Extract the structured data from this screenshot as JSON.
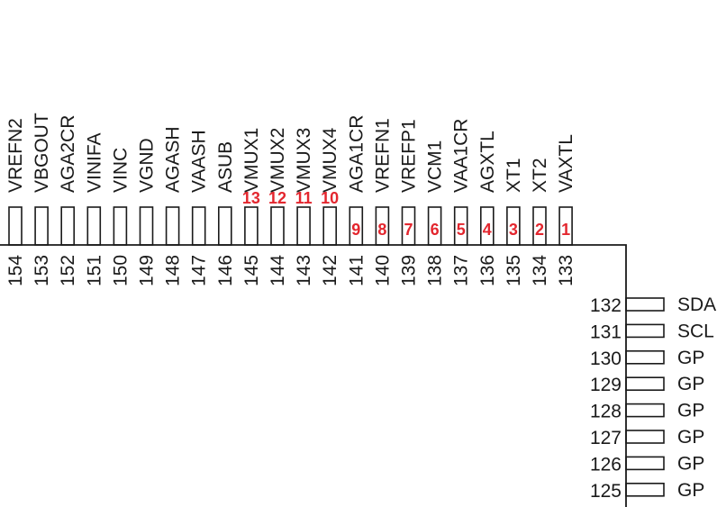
{
  "top_pins": [
    {
      "num": "154",
      "label": "VREFN2",
      "mark": ""
    },
    {
      "num": "153",
      "label": "VBGOUT",
      "mark": ""
    },
    {
      "num": "152",
      "label": "AGA2CR",
      "mark": ""
    },
    {
      "num": "151",
      "label": "VINIFA",
      "mark": ""
    },
    {
      "num": "150",
      "label": "VINC",
      "mark": ""
    },
    {
      "num": "149",
      "label": "VGND",
      "mark": ""
    },
    {
      "num": "148",
      "label": "AGASH",
      "mark": ""
    },
    {
      "num": "147",
      "label": "VAASH",
      "mark": ""
    },
    {
      "num": "146",
      "label": "ASUB",
      "mark": ""
    },
    {
      "num": "145",
      "label": "VMUX1",
      "mark": "13"
    },
    {
      "num": "144",
      "label": "VMUX2",
      "mark": "12"
    },
    {
      "num": "143",
      "label": "VMUX3",
      "mark": "11"
    },
    {
      "num": "142",
      "label": "VMUX4",
      "mark": "10"
    },
    {
      "num": "141",
      "label": "AGA1CR",
      "mark": "9"
    },
    {
      "num": "140",
      "label": "VREFN1",
      "mark": "8"
    },
    {
      "num": "139",
      "label": "VREFP1",
      "mark": "7"
    },
    {
      "num": "138",
      "label": "VCM1",
      "mark": "6"
    },
    {
      "num": "137",
      "label": "VAA1CR",
      "mark": "5"
    },
    {
      "num": "136",
      "label": "AGXTL",
      "mark": "4"
    },
    {
      "num": "135",
      "label": "XT1",
      "mark": "3"
    },
    {
      "num": "134",
      "label": "XT2",
      "mark": "2"
    },
    {
      "num": "133",
      "label": "VAXTL",
      "mark": "1"
    }
  ],
  "right_pins": [
    {
      "num": "132",
      "label": "SDA"
    },
    {
      "num": "131",
      "label": "SCL"
    },
    {
      "num": "130",
      "label": "GP"
    },
    {
      "num": "129",
      "label": "GP"
    },
    {
      "num": "128",
      "label": "GP"
    },
    {
      "num": "127",
      "label": "GP"
    },
    {
      "num": "126",
      "label": "GP"
    },
    {
      "num": "125",
      "label": "GP"
    }
  ],
  "colors": {
    "ink": "#1a1a1a",
    "mark": "#e3262e"
  }
}
